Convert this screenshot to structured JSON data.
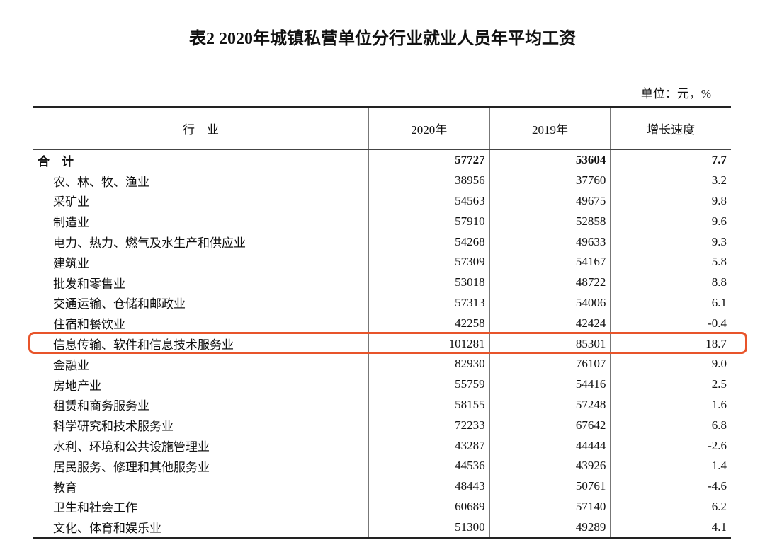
{
  "header": {
    "title": "表2  2020年城镇私营单位分行业就业人员年平均工资",
    "unit": "单位：元，%"
  },
  "table": {
    "columns": [
      "行　业",
      "2020年",
      "2019年",
      "增长速度"
    ],
    "rows": [
      [
        "合　计",
        "57727",
        "53604",
        "7.7"
      ],
      [
        "农、林、牧、渔业",
        "38956",
        "37760",
        "3.2"
      ],
      [
        "采矿业",
        "54563",
        "49675",
        "9.8"
      ],
      [
        "制造业",
        "57910",
        "52858",
        "9.6"
      ],
      [
        "电力、热力、燃气及水生产和供应业",
        "54268",
        "49633",
        "9.3"
      ],
      [
        "建筑业",
        "57309",
        "54167",
        "5.8"
      ],
      [
        "批发和零售业",
        "53018",
        "48722",
        "8.8"
      ],
      [
        "交通运输、仓储和邮政业",
        "57313",
        "54006",
        "6.1"
      ],
      [
        "住宿和餐饮业",
        "42258",
        "42424",
        "-0.4"
      ],
      [
        "信息传输、软件和信息技术服务业",
        "101281",
        "85301",
        "18.7"
      ],
      [
        "金融业",
        "82930",
        "76107",
        "9.0"
      ],
      [
        "房地产业",
        "55759",
        "54416",
        "2.5"
      ],
      [
        "租赁和商务服务业",
        "58155",
        "57248",
        "1.6"
      ],
      [
        "科学研究和技术服务业",
        "72233",
        "67642",
        "6.8"
      ],
      [
        "水利、环境和公共设施管理业",
        "43287",
        "44444",
        "-2.6"
      ],
      [
        "居民服务、修理和其他服务业",
        "44536",
        "43926",
        "1.4"
      ],
      [
        "教育",
        "48443",
        "50761",
        "-4.6"
      ],
      [
        "卫生和社会工作",
        "60689",
        "57140",
        "6.2"
      ],
      [
        "文化、体育和娱乐业",
        "51300",
        "49289",
        "4.1"
      ]
    ]
  }
}
